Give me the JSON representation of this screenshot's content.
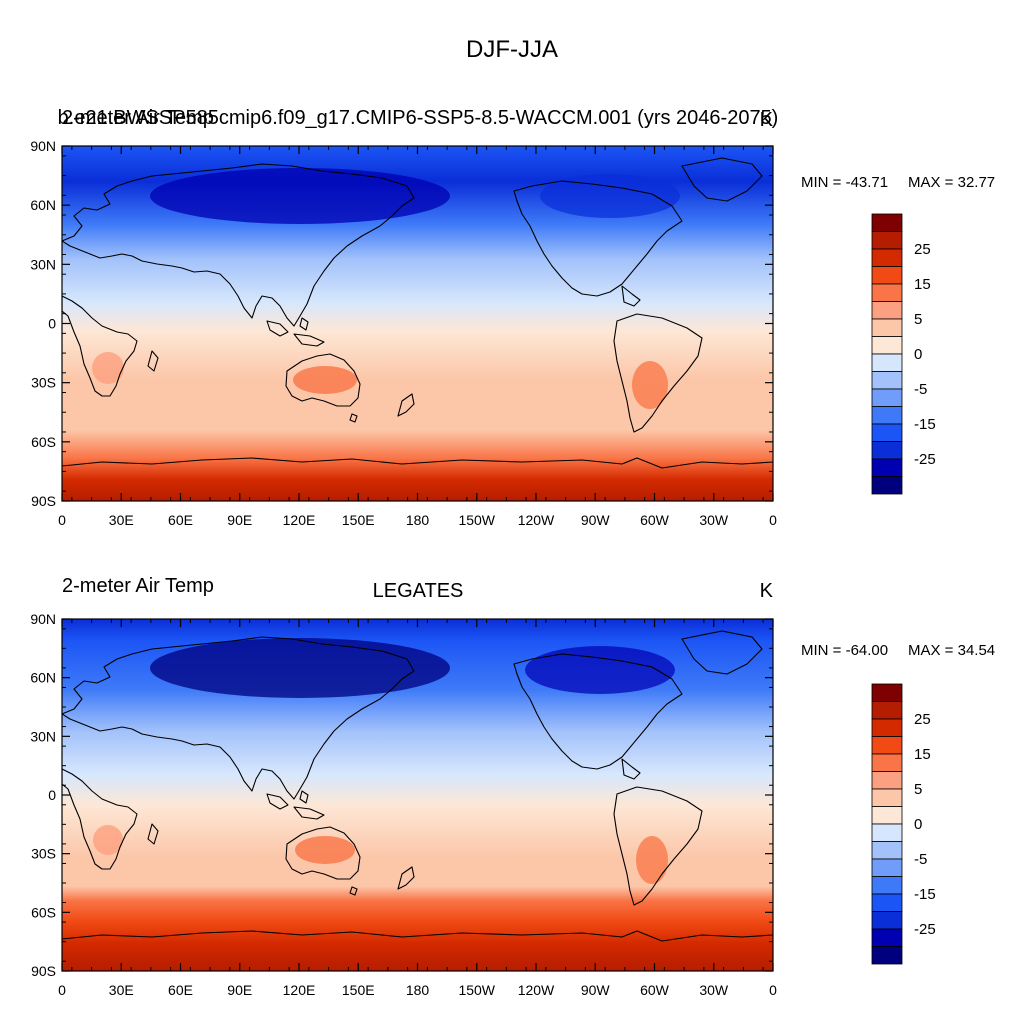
{
  "figure": {
    "title": "DJF-JJA"
  },
  "panels": [
    {
      "id": "model",
      "left_title": "2-meter Air Temp",
      "center_title": "b.e21.BWSSP585cmip6.f09_g17.CMIP6-SSP5-8.5-WACCM.001 (yrs 2046-2075)",
      "units": "K",
      "min_label": "MIN = -43.71",
      "max_label": "MAX =  32.77",
      "stats": {
        "min": -43.71,
        "max": 32.77
      }
    },
    {
      "id": "obs",
      "left_title": "2-meter Air Temp",
      "center_title": "LEGATES",
      "units": "K",
      "min_label": "MIN = -64.00",
      "max_label": "MAX =  34.54",
      "stats": {
        "min": -64.0,
        "max": 34.54
      }
    }
  ],
  "axes": {
    "lat_labels": [
      "90N",
      "60N",
      "30N",
      "0",
      "30S",
      "60S",
      "90S"
    ],
    "lon_labels": [
      "0",
      "30E",
      "60E",
      "90E",
      "120E",
      "150E",
      "180",
      "150W",
      "120W",
      "90W",
      "60W",
      "30W",
      "0"
    ]
  },
  "colorbar": {
    "levels": [
      -35,
      -30,
      -25,
      -20,
      -15,
      -10,
      -5,
      0,
      5,
      10,
      15,
      20,
      25,
      30
    ],
    "labels": [
      "25",
      "15",
      "5",
      "0",
      "-5",
      "-15",
      "-25"
    ],
    "colors": [
      "#00007f",
      "#0000b2",
      "#0a2ed8",
      "#1c55f5",
      "#3e7af8",
      "#709dfa",
      "#a3c2fb",
      "#d6e7fd",
      "#fde7d6",
      "#fcc6a8",
      "#fba080",
      "#f97446",
      "#f14a14",
      "#d42a00",
      "#b51d00",
      "#7f0000"
    ]
  }
}
